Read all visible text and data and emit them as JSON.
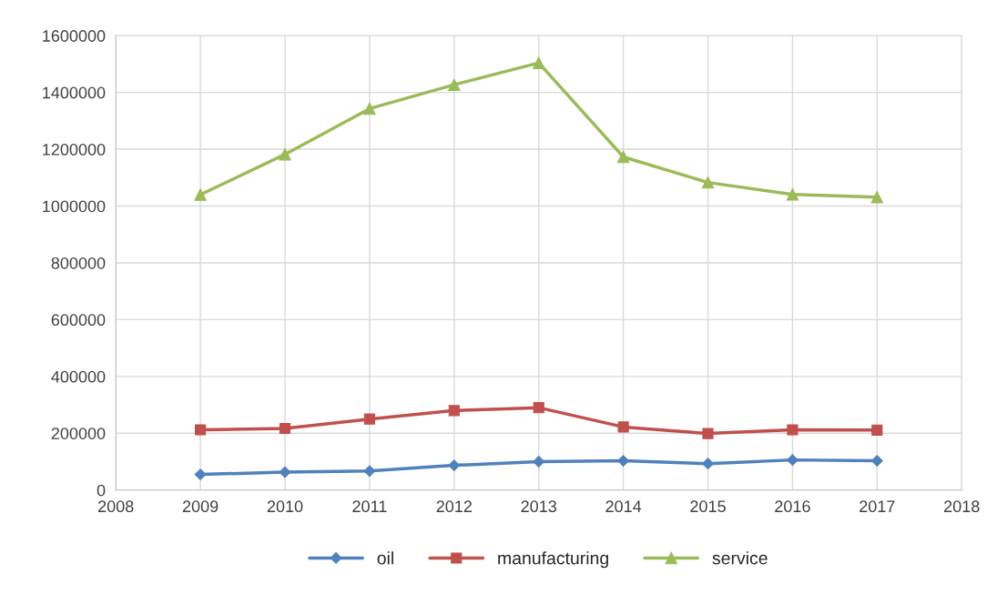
{
  "chart_data": {
    "type": "line",
    "x": [
      2009,
      2010,
      2011,
      2012,
      2013,
      2014,
      2015,
      2016,
      2017
    ],
    "series": [
      {
        "name": "oil",
        "color": "#4f81bd",
        "marker": "diamond",
        "values": [
          55000,
          63000,
          67000,
          87000,
          100000,
          103000,
          93000,
          106000,
          103000
        ]
      },
      {
        "name": "manufacturing",
        "color": "#c0504d",
        "marker": "square",
        "values": [
          212000,
          217000,
          250000,
          280000,
          290000,
          222000,
          199000,
          212000,
          211000
        ]
      },
      {
        "name": "service",
        "color": "#9bbb59",
        "marker": "triangle",
        "values": [
          1040000,
          1182000,
          1343000,
          1427000,
          1504000,
          1173000,
          1083000,
          1041000,
          1031000
        ]
      }
    ],
    "xlim": [
      2008,
      2018
    ],
    "xticks": [
      2008,
      2009,
      2010,
      2011,
      2012,
      2013,
      2014,
      2015,
      2016,
      2017,
      2018
    ],
    "ylim": [
      0,
      1600000
    ],
    "yticks": [
      0,
      200000,
      400000,
      600000,
      800000,
      1000000,
      1200000,
      1400000,
      1600000
    ],
    "grid": true,
    "legend": "bottom",
    "line_style": "solid"
  }
}
